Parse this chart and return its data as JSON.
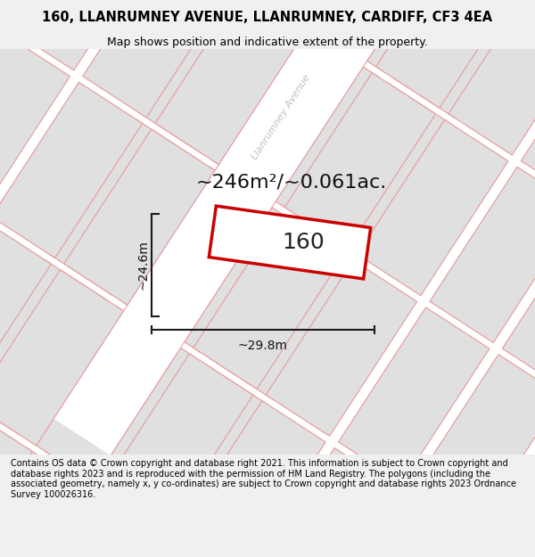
{
  "title_line1": "160, LLANRUMNEY AVENUE, LLANRUMNEY, CARDIFF, CF3 4EA",
  "title_line2": "Map shows position and indicative extent of the property.",
  "footer_text": "Contains OS data © Crown copyright and database right 2021. This information is subject to Crown copyright and database rights 2023 and is reproduced with the permission of HM Land Registry. The polygons (including the associated geometry, namely x, y co-ordinates) are subject to Crown copyright and database rights 2023 Ordnance Survey 100026316.",
  "area_label": "~246m²/~0.061ac.",
  "number_label": "160",
  "dim_width": "~29.8m",
  "dim_height": "~24.6m",
  "street_label": "Llanrumney Avenue",
  "bg_color": "#f0f0f0",
  "map_bg": "#ffffff",
  "block_fill": "#e0e0e0",
  "block_edge": "#e8a0a0",
  "road_fill": "#ebebeb",
  "road_edge": "#e8a0a0",
  "dim_line_color": "#1a1a1a",
  "prop_edge": "#cc0000",
  "prop_face": "#ffffff",
  "title_fontsize": 10.5,
  "subtitle_fontsize": 9,
  "footer_fontsize": 7,
  "label_fontsize": 16,
  "number_fontsize": 18,
  "dim_fontsize": 10,
  "street_fontsize": 8
}
